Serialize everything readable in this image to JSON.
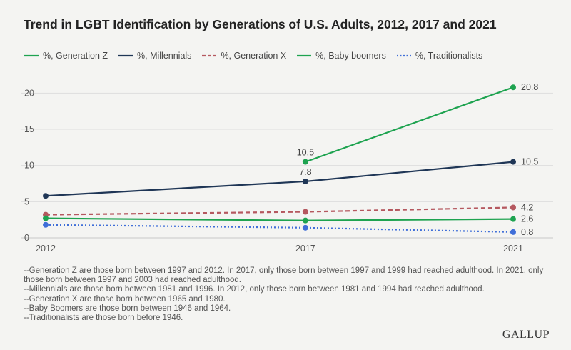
{
  "title": "Trend in LGBT Identification by Generations of U.S. Adults, 2012, 2017 and 2021",
  "chart_data": {
    "type": "line",
    "title": "Trend in LGBT Identification by Generations of U.S. Adults, 2012, 2017 and 2021",
    "xlabel": "",
    "ylabel": "",
    "x": [
      "2012",
      "2017",
      "2021"
    ],
    "x_values": [
      2012,
      2017,
      2021
    ],
    "xlim": [
      2012,
      2021
    ],
    "ylim": [
      0,
      22.5
    ],
    "yticks": [
      "0",
      "5",
      "10",
      "15",
      "20"
    ],
    "ytick_values": [
      0,
      5,
      10,
      15,
      20
    ],
    "grid": true,
    "legend_position": "top-left",
    "series": [
      {
        "name": "%, Generation Z",
        "color": "#1ea350",
        "dash": "solid",
        "values": [
          null,
          10.5,
          20.8
        ],
        "labels": [
          "",
          "10.5",
          "20.8"
        ]
      },
      {
        "name": "%, Millennials",
        "color": "#1f3656",
        "dash": "solid",
        "values": [
          5.8,
          7.8,
          10.5
        ],
        "labels": [
          "",
          "7.8",
          "10.5"
        ]
      },
      {
        "name": "%, Generation X",
        "color": "#b5585f",
        "dash": "dashed",
        "values": [
          3.2,
          3.6,
          4.2
        ],
        "labels": [
          "",
          "",
          "4.2"
        ]
      },
      {
        "name": "%, Baby boomers",
        "color": "#1ea350",
        "dash": "solid",
        "values": [
          2.7,
          2.4,
          2.6
        ],
        "labels": [
          "",
          "",
          "2.6"
        ]
      },
      {
        "name": "%, Traditionalists",
        "color": "#3f6ed8",
        "dash": "dotted",
        "values": [
          1.8,
          1.4,
          0.8
        ],
        "labels": [
          "",
          "",
          "0.8"
        ]
      }
    ]
  },
  "notes": [
    "--Generation Z are those born between 1997 and 2012. In 2017, only those born between 1997 and 1999 had reached adulthood. In 2021, only those born between 1997 and 2003 had reached adulthood.",
    "--Millennials are those born between 1981 and 1996. In 2012, only those born between 1981 and 1994 had reached adulthood.",
    "--Generation X are those born between 1965 and 1980.",
    "--Baby Boomers are those born between 1946 and 1964.",
    "--Traditionalists are those born before 1946."
  ],
  "brand": "GALLUP"
}
